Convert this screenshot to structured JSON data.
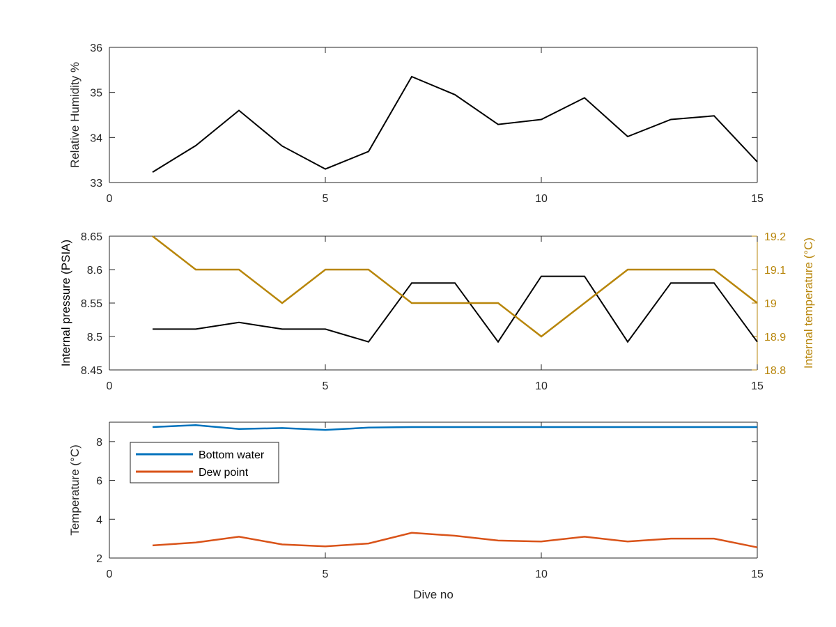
{
  "colors": {
    "axis": "#262626",
    "black_series": "#000000",
    "temperature_axis": "#B8860B",
    "bottom_water": "#0072BD",
    "dew_point": "#D95319"
  },
  "chart_data": [
    {
      "type": "line",
      "xlabel": "",
      "ylabel": "Relative Humidity %",
      "xlim": [
        0,
        15
      ],
      "ylim": [
        33,
        36
      ],
      "xticks": [
        "0",
        "5",
        "10",
        "15"
      ],
      "yticks": [
        "33",
        "34",
        "35",
        "36"
      ],
      "grid": false,
      "series": [
        {
          "x": [
            1,
            2,
            3,
            4,
            5,
            6,
            7,
            8,
            9,
            10,
            11,
            12,
            13,
            14,
            15
          ],
          "values": [
            33.23,
            33.82,
            34.6,
            33.81,
            33.3,
            33.69,
            35.35,
            34.95,
            34.29,
            34.4,
            34.88,
            34.02,
            34.4,
            34.48,
            33.46
          ]
        }
      ]
    },
    {
      "type": "line",
      "xlabel": "",
      "ylabel": "Internal pressure (PSIA)",
      "y2label": "Internal temperature (°C)",
      "xlim": [
        0,
        15
      ],
      "ylim": [
        8.45,
        8.65
      ],
      "y2lim": [
        18.8,
        19.2
      ],
      "xticks": [
        "0",
        "5",
        "10",
        "15"
      ],
      "yticks": [
        "8.45",
        "8.5",
        "8.55",
        "8.6",
        "8.65"
      ],
      "y2ticks": [
        "18.8",
        "18.9",
        "19",
        "19.1",
        "19.2"
      ],
      "grid": false,
      "series": [
        {
          "axis": "left",
          "x": [
            1,
            2,
            3,
            4,
            5,
            6,
            7,
            8,
            9,
            10,
            11,
            12,
            13,
            14,
            15
          ],
          "values": [
            8.511,
            8.511,
            8.521,
            8.511,
            8.511,
            8.492,
            8.58,
            8.58,
            8.492,
            8.59,
            8.59,
            8.492,
            8.58,
            8.58,
            8.492
          ]
        },
        {
          "axis": "right",
          "x": [
            1,
            2,
            3,
            4,
            5,
            6,
            7,
            8,
            9,
            10,
            11,
            12,
            13,
            14,
            15
          ],
          "values": [
            19.2,
            19.1,
            19.1,
            19.0,
            19.1,
            19.1,
            19.0,
            19.0,
            19.0,
            18.9,
            19.0,
            19.1,
            19.1,
            19.1,
            19.0
          ]
        }
      ]
    },
    {
      "type": "line",
      "xlabel": "Dive no",
      "ylabel": "Temperature (°C)",
      "xlim": [
        0,
        15
      ],
      "ylim": [
        2,
        9
      ],
      "xticks": [
        "0",
        "5",
        "10",
        "15"
      ],
      "yticks": [
        "2",
        "4",
        "6",
        "8"
      ],
      "grid": false,
      "legend": "top-left",
      "series": [
        {
          "name": "Bottom water",
          "x": [
            1,
            2,
            3,
            4,
            5,
            6,
            7,
            8,
            9,
            10,
            11,
            12,
            13,
            14,
            15
          ],
          "values": [
            8.75,
            8.85,
            8.65,
            8.7,
            8.6,
            8.72,
            8.75,
            8.75,
            8.75,
            8.75,
            8.75,
            8.75,
            8.75,
            8.75,
            8.75
          ]
        },
        {
          "name": "Dew point",
          "x": [
            1,
            2,
            3,
            4,
            5,
            6,
            7,
            8,
            9,
            10,
            11,
            12,
            13,
            14,
            15
          ],
          "values": [
            2.65,
            2.8,
            3.1,
            2.7,
            2.6,
            2.75,
            3.3,
            3.15,
            2.9,
            2.85,
            3.1,
            2.85,
            3.0,
            3.0,
            2.55
          ]
        }
      ]
    }
  ]
}
